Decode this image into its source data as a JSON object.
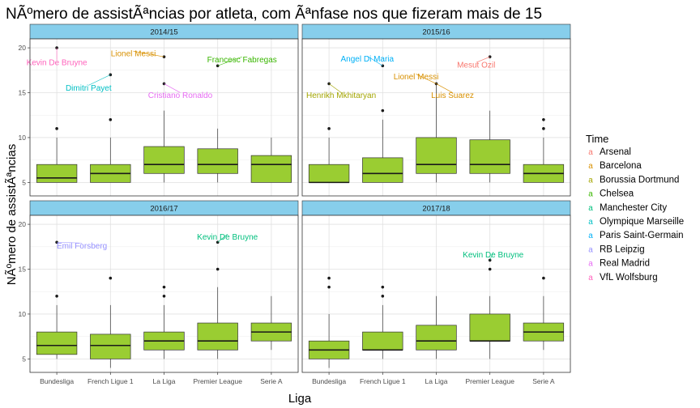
{
  "chart_data": {
    "type": "boxplot",
    "title": "NÃºmero de assistÃªncias por atleta, com Ãªnfase nos que fizeram mais de 15",
    "xlabel": "Liga",
    "ylabel": "NÃºmero de assistÃªncias",
    "categories": [
      "Bundesliga",
      "French Ligue 1",
      "La Liga",
      "Premier League",
      "Serie A"
    ],
    "ylim": [
      3.5,
      21
    ],
    "yticks": [
      5,
      10,
      15,
      20
    ],
    "grid": true,
    "box_color": "#9acd32",
    "strip_color": "#87ceeb",
    "legend": {
      "title": "Time",
      "position": "right",
      "items": [
        {
          "name": "Arsenal",
          "color": "#F8766D"
        },
        {
          "name": "Barcelona",
          "color": "#D89000"
        },
        {
          "name": "Borussia Dortmund",
          "color": "#A3A500"
        },
        {
          "name": "Chelsea",
          "color": "#39B600"
        },
        {
          "name": "Manchester City",
          "color": "#00BF7D"
        },
        {
          "name": "Olympique Marseille",
          "color": "#00BFC4"
        },
        {
          "name": "Paris Saint-Germain",
          "color": "#00B0F6"
        },
        {
          "name": "RB Leipzig",
          "color": "#9590FF"
        },
        {
          "name": "Real Madrid",
          "color": "#E76BF3"
        },
        {
          "name": "VfL Wolfsburg",
          "color": "#FF62BC"
        }
      ]
    },
    "panels": [
      {
        "season": "2014/15",
        "boxes": [
          {
            "league": "Bundesliga",
            "min": 5,
            "q1": 5,
            "median": 5.5,
            "q3": 7,
            "max": 10,
            "outliers": [
              11,
              20
            ]
          },
          {
            "league": "French Ligue 1",
            "min": 5,
            "q1": 5,
            "median": 6,
            "q3": 7,
            "max": 10,
            "outliers": [
              12,
              17
            ]
          },
          {
            "league": "La Liga",
            "min": 5,
            "q1": 6,
            "median": 7,
            "q3": 9,
            "max": 13,
            "outliers": [
              16,
              19
            ]
          },
          {
            "league": "Premier League",
            "min": 5,
            "q1": 6,
            "median": 7,
            "q3": 8.75,
            "max": 11,
            "outliers": [
              18
            ]
          },
          {
            "league": "Serie A",
            "min": 5,
            "q1": 5,
            "median": 7,
            "q3": 8,
            "max": 10,
            "outliers": []
          }
        ],
        "annotations": [
          {
            "label": "Kevin De Bruyne",
            "league": "Bundesliga",
            "value": 20,
            "team": "VfL Wolfsburg"
          },
          {
            "label": "Dimitri Payet",
            "league": "French Ligue 1",
            "value": 17,
            "team": "Olympique Marseille"
          },
          {
            "label": "Lionel Messi",
            "league": "La Liga",
            "value": 19,
            "team": "Barcelona"
          },
          {
            "label": "Cristiano Ronaldo",
            "league": "La Liga",
            "value": 16,
            "team": "Real Madrid"
          },
          {
            "label": "Francesc Fabregas",
            "league": "Premier League",
            "value": 18,
            "team": "Chelsea"
          }
        ]
      },
      {
        "season": "2015/16",
        "boxes": [
          {
            "league": "Bundesliga",
            "min": 5,
            "q1": 5,
            "median": 5,
            "q3": 7,
            "max": 10,
            "outliers": [
              11,
              16
            ]
          },
          {
            "league": "French Ligue 1",
            "min": 5,
            "q1": 5,
            "median": 6,
            "q3": 7.75,
            "max": 12,
            "outliers": [
              13,
              18
            ]
          },
          {
            "league": "La Liga",
            "min": 5,
            "q1": 6,
            "median": 7,
            "q3": 10,
            "max": 16,
            "outliers": [
              16
            ]
          },
          {
            "league": "Premier League",
            "min": 5,
            "q1": 6,
            "median": 7,
            "q3": 9.75,
            "max": 13,
            "outliers": [
              19
            ]
          },
          {
            "league": "Serie A",
            "min": 5,
            "q1": 5,
            "median": 6,
            "q3": 7,
            "max": 10,
            "outliers": [
              11,
              12
            ]
          }
        ],
        "annotations": [
          {
            "label": "Henrikh Mkhitaryan",
            "league": "Bundesliga",
            "value": 16,
            "team": "Borussia Dortmund"
          },
          {
            "label": "Angel Di Maria",
            "league": "French Ligue 1",
            "value": 18,
            "team": "Paris Saint-Germain"
          },
          {
            "label": "Lionel Messi",
            "league": "La Liga",
            "value": 16,
            "team": "Barcelona"
          },
          {
            "label": "Luis Suarez",
            "league": "La Liga",
            "value": 16,
            "team": "Barcelona"
          },
          {
            "label": "Mesut Ozil",
            "league": "Premier League",
            "value": 19,
            "team": "Arsenal"
          }
        ]
      },
      {
        "season": "2016/17",
        "boxes": [
          {
            "league": "Bundesliga",
            "min": 5,
            "q1": 5.5,
            "median": 6.5,
            "q3": 8,
            "max": 11,
            "outliers": [
              12,
              18
            ]
          },
          {
            "league": "French Ligue 1",
            "min": 4,
            "q1": 5,
            "median": 6.5,
            "q3": 7.75,
            "max": 11,
            "outliers": [
              14
            ]
          },
          {
            "league": "La Liga",
            "min": 5,
            "q1": 6,
            "median": 7,
            "q3": 8,
            "max": 11,
            "outliers": [
              12,
              13
            ]
          },
          {
            "league": "Premier League",
            "min": 5,
            "q1": 6,
            "median": 7,
            "q3": 9,
            "max": 13,
            "outliers": [
              15,
              18
            ]
          },
          {
            "league": "Serie A",
            "min": 6,
            "q1": 7,
            "median": 8,
            "q3": 9,
            "max": 12,
            "outliers": []
          }
        ],
        "annotations": [
          {
            "label": "Emil Forsberg",
            "league": "Bundesliga",
            "value": 18,
            "team": "RB Leipzig"
          },
          {
            "label": "Kevin De Bruyne",
            "league": "Premier League",
            "value": 18,
            "team": "Manchester City"
          }
        ]
      },
      {
        "season": "2017/18",
        "boxes": [
          {
            "league": "Bundesliga",
            "min": 4,
            "q1": 5,
            "median": 6,
            "q3": 7,
            "max": 10,
            "outliers": [
              13,
              14
            ]
          },
          {
            "league": "French Ligue 1",
            "min": 5,
            "q1": 6,
            "median": 6,
            "q3": 8,
            "max": 11,
            "outliers": [
              12,
              13
            ]
          },
          {
            "league": "La Liga",
            "min": 5,
            "q1": 6,
            "median": 7,
            "q3": 8.75,
            "max": 12,
            "outliers": []
          },
          {
            "league": "Premier League",
            "min": 5,
            "q1": 7,
            "median": 7,
            "q3": 10,
            "max": 12,
            "outliers": [
              15,
              16
            ]
          },
          {
            "league": "Serie A",
            "min": 6,
            "q1": 7,
            "median": 8,
            "q3": 9,
            "max": 12,
            "outliers": [
              14
            ]
          }
        ],
        "annotations": [
          {
            "label": "Kevin De Bruyne",
            "league": "Premier League",
            "value": 16,
            "team": "Manchester City"
          }
        ]
      }
    ]
  }
}
